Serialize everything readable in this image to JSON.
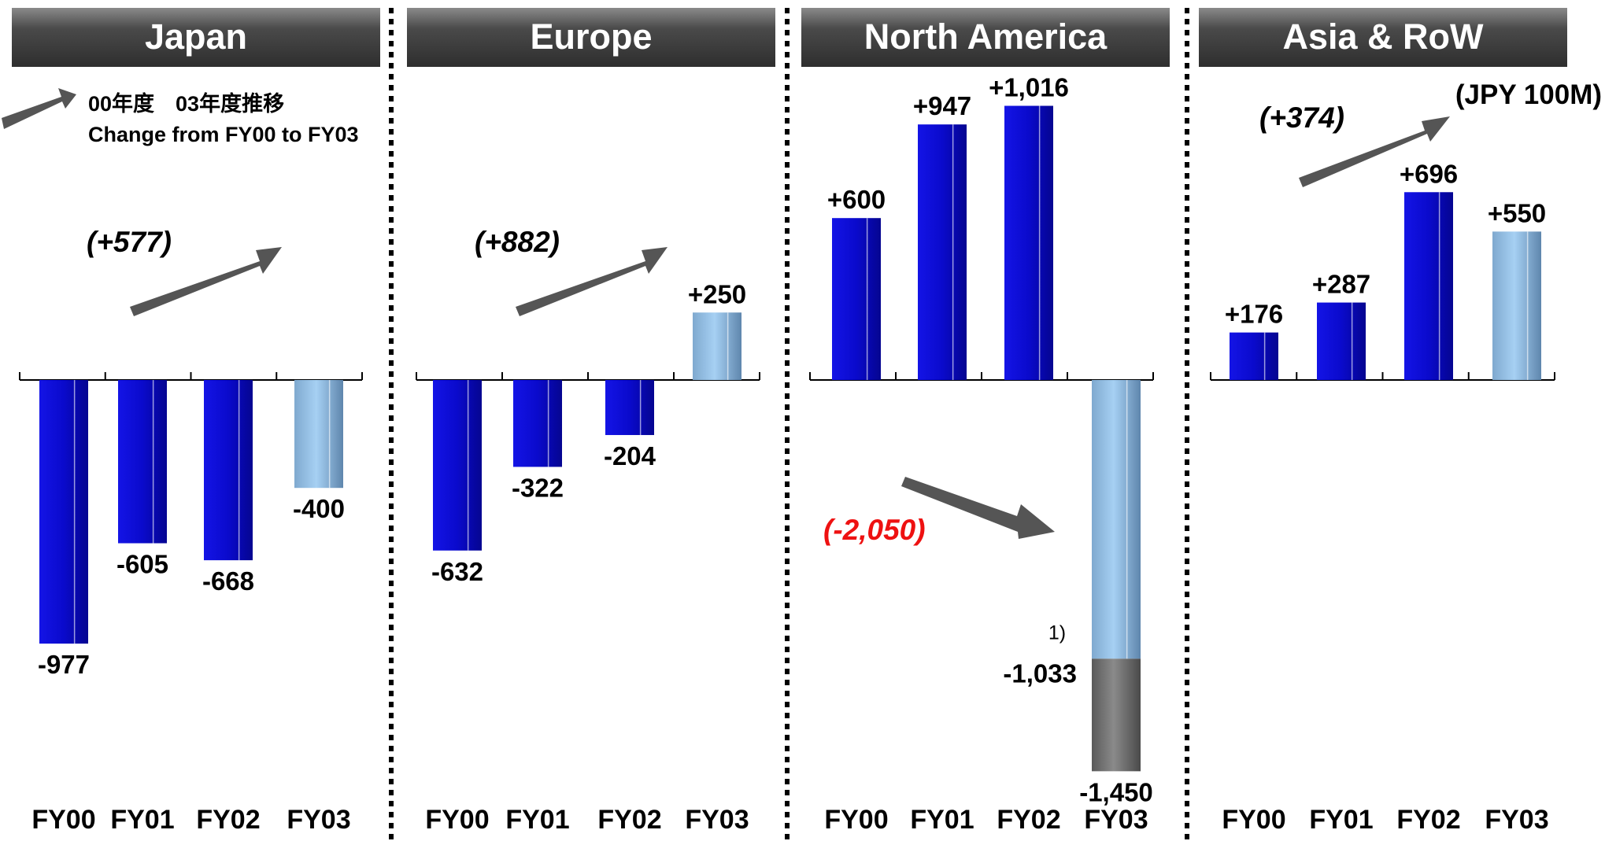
{
  "unit_label": "(JPY 100M)",
  "legend": {
    "line1": "00年度　03年度推移",
    "line2": "Change from FY00 to FY03"
  },
  "colors": {
    "header_dark": "#3a3a3a",
    "header_light": "#8a8a8a",
    "bar_fy00_fy02": "#0a0acc",
    "bar_fy03": "#8fbde8",
    "bar_special": "#6b6b6b",
    "arrow": "#555555",
    "negative_change": "#ee1111"
  },
  "chart_data": [
    {
      "type": "bar",
      "title": "Japan",
      "categories": [
        "FY00",
        "FY01",
        "FY02",
        "FY03"
      ],
      "values": [
        -977,
        -605,
        -668,
        -400
      ],
      "labels": [
        "-977",
        "-605",
        "-668",
        "-400"
      ],
      "change_label": "(+577)",
      "change_direction": "up"
    },
    {
      "type": "bar",
      "title": "Europe",
      "categories": [
        "FY00",
        "FY01",
        "FY02",
        "FY03"
      ],
      "values": [
        -632,
        -322,
        -204,
        250
      ],
      "labels": [
        "-632",
        "-322",
        "-204",
        "+250"
      ],
      "change_label": "(+882)",
      "change_direction": "up"
    },
    {
      "type": "bar",
      "title": "North America",
      "categories": [
        "FY00",
        "FY01",
        "FY02",
        "FY03"
      ],
      "values": [
        600,
        947,
        1016,
        -1450
      ],
      "labels": [
        "+600",
        "+947",
        "+1,016",
        "-1,450"
      ],
      "fy03_segments": [
        {
          "from": 0,
          "to": -1033,
          "label": "-1,033",
          "note": "1)"
        },
        {
          "from": -1033,
          "to": -1450
        }
      ],
      "change_label": "(-2,050)",
      "change_direction": "down"
    },
    {
      "type": "bar",
      "title": "Asia & RoW",
      "categories": [
        "FY00",
        "FY01",
        "FY02",
        "FY03"
      ],
      "values": [
        176,
        287,
        696,
        550
      ],
      "labels": [
        "+176",
        "+287",
        "+696",
        "+550"
      ],
      "change_label": "(+374)",
      "change_direction": "up"
    }
  ]
}
